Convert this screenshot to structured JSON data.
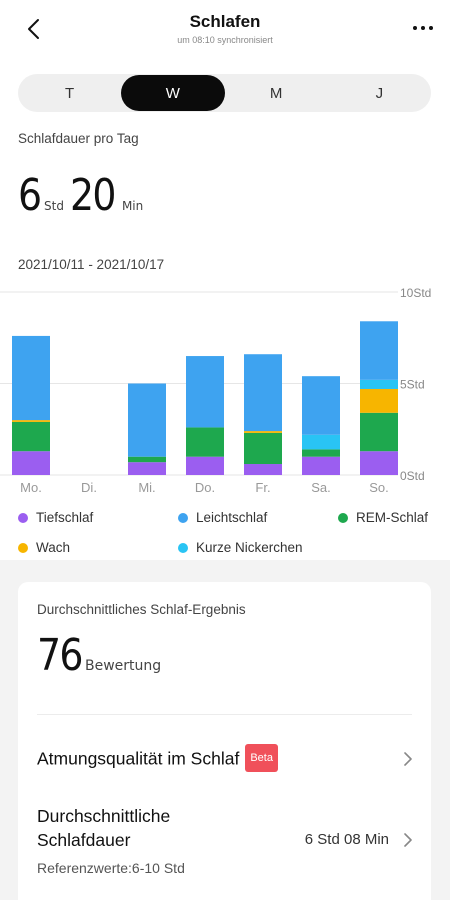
{
  "header": {
    "title": "Schlafen",
    "subtitle": "um 08:10 synchronisiert"
  },
  "tabs": [
    {
      "label": "T",
      "active": false
    },
    {
      "label": "W",
      "active": true
    },
    {
      "label": "M",
      "active": false
    },
    {
      "label": "J",
      "active": false
    }
  ],
  "summary": {
    "label": "Schlafdauer pro Tag",
    "hours": "6",
    "hours_unit": "Std",
    "minutes": "20",
    "minutes_unit": "Min",
    "date_range": "2021/10/11 - 2021/10/17"
  },
  "chart_data": {
    "type": "bar",
    "stacked": true,
    "categories": [
      "Mo.",
      "Di.",
      "Mi.",
      "Do.",
      "Fr.",
      "Sa.",
      "So."
    ],
    "y_tick_labels": [
      "0Std",
      "5Std",
      "10Std"
    ],
    "y_ticks": [
      0,
      5,
      10
    ],
    "ylim": [
      0,
      10
    ],
    "grid": true,
    "series": [
      {
        "name": "Tiefschlaf",
        "color": "#9b5ef0",
        "values": [
          1.3,
          0,
          0.7,
          1.0,
          0.6,
          1.0,
          1.3
        ]
      },
      {
        "name": "REM-Schlaf",
        "color": "#1ea84e",
        "values": [
          1.6,
          0,
          0.3,
          1.6,
          1.7,
          0.4,
          2.1
        ]
      },
      {
        "name": "Wach",
        "color": "#f7b500",
        "values": [
          0.1,
          0,
          0,
          0,
          0.1,
          0,
          1.3
        ]
      },
      {
        "name": "Kurze Nickerchen",
        "color": "#29c4f4",
        "values": [
          0,
          0,
          0,
          0,
          0,
          0.8,
          0.5
        ]
      },
      {
        "name": "Leichtschlaf",
        "color": "#3ea3f0",
        "values": [
          4.6,
          0,
          4.0,
          3.9,
          4.2,
          3.2,
          3.2
        ]
      }
    ]
  },
  "legend": [
    {
      "label": "Tiefschlaf",
      "color": "#9b5ef0"
    },
    {
      "label": "Leichtschlaf",
      "color": "#3ea3f0"
    },
    {
      "label": "REM-Schlaf",
      "color": "#1ea84e"
    },
    {
      "label": "Wach",
      "color": "#f7b500"
    },
    {
      "label": "Kurze Nickerchen",
      "color": "#29c4f4"
    }
  ],
  "score": {
    "label": "Durchschnittliches Schlaf-Ergebnis",
    "value": "76",
    "unit": "Bewertung"
  },
  "breathing": {
    "label": "Atmungsqualität im Schlaf",
    "badge": "Beta"
  },
  "avg_duration": {
    "label_line1": "Durchschnittliche",
    "label_line2": "Schlafdauer",
    "value": "6 Std 08 Min",
    "reference": "Referenzwerte:6-10 Std"
  }
}
